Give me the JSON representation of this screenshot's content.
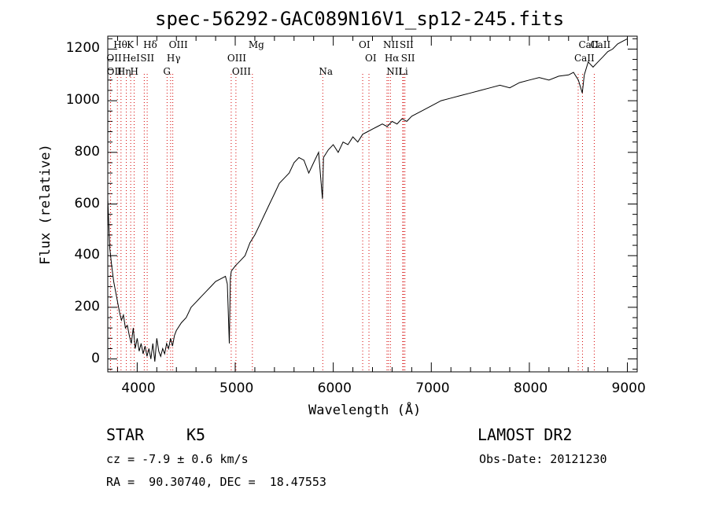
{
  "chart_data": {
    "type": "line",
    "title": "spec-56292-GAC089N16V1_sp12-245.fits",
    "xlabel": "Wavelength (Å)",
    "ylabel": "Flux (relative)",
    "xlim": [
      3700,
      9100
    ],
    "ylim": [
      -50,
      1250
    ],
    "x_ticks": [
      "4000",
      "5000",
      "6000",
      "7000",
      "8000",
      "9000"
    ],
    "y_ticks": [
      "0",
      "200",
      "400",
      "600",
      "800",
      "1000",
      "1200"
    ],
    "grid": false,
    "series": [
      {
        "x": [
          3700,
          3720,
          3740,
          3760,
          3780,
          3800,
          3820,
          3840,
          3860,
          3880,
          3900,
          3920,
          3940,
          3960,
          3980,
          4000,
          4020,
          4040,
          4060,
          4080,
          4100,
          4120,
          4140,
          4160,
          4180,
          4200,
          4220,
          4240,
          4260,
          4280,
          4300,
          4320,
          4340,
          4360,
          4380,
          4400,
          4450,
          4500,
          4550,
          4600,
          4650,
          4700,
          4750,
          4800,
          4850,
          4900,
          4920,
          4940,
          4950,
          4960,
          5000,
          5050,
          5100,
          5150,
          5200,
          5250,
          5300,
          5350,
          5400,
          5450,
          5500,
          5550,
          5600,
          5650,
          5700,
          5750,
          5800,
          5850,
          5890,
          5900,
          5950,
          6000,
          6050,
          6100,
          6150,
          6200,
          6250,
          6300,
          6350,
          6400,
          6450,
          6500,
          6550,
          6600,
          6650,
          6700,
          6750,
          6800,
          6900,
          7000,
          7100,
          7200,
          7300,
          7400,
          7500,
          7600,
          7700,
          7800,
          7900,
          8000,
          8100,
          8200,
          8300,
          8400,
          8450,
          8500,
          8540,
          8560,
          8600,
          8650,
          8700,
          8750,
          8800,
          8850,
          8900,
          8950,
          9000
        ],
        "values": [
          620,
          430,
          360,
          300,
          260,
          220,
          180,
          150,
          170,
          120,
          130,
          90,
          60,
          120,
          40,
          80,
          30,
          60,
          20,
          50,
          10,
          40,
          0,
          60,
          -10,
          80,
          30,
          10,
          40,
          20,
          60,
          40,
          80,
          50,
          90,
          110,
          140,
          160,
          200,
          220,
          240,
          260,
          280,
          300,
          310,
          320,
          290,
          60,
          310,
          340,
          360,
          380,
          400,
          450,
          480,
          520,
          560,
          600,
          640,
          680,
          700,
          720,
          760,
          780,
          770,
          720,
          760,
          800,
          620,
          780,
          810,
          830,
          800,
          840,
          830,
          860,
          840,
          870,
          880,
          890,
          900,
          910,
          900,
          920,
          910,
          930,
          920,
          940,
          960,
          980,
          1000,
          1010,
          1020,
          1030,
          1040,
          1050,
          1060,
          1050,
          1070,
          1080,
          1090,
          1080,
          1095,
          1100,
          1110,
          1080,
          1030,
          1100,
          1150,
          1130,
          1150,
          1170,
          1190,
          1200,
          1220,
          1230,
          1240
        ]
      }
    ],
    "line_markers": [
      {
        "name": "Hθ",
        "x": 3798,
        "row": 0
      },
      {
        "name": "K",
        "x": 3934,
        "row": 0
      },
      {
        "name": "Hδ",
        "x": 4102,
        "row": 0
      },
      {
        "name": "OIII",
        "x": 4363,
        "row": 0
      },
      {
        "name": "Mg",
        "x": 5175,
        "row": 0
      },
      {
        "name": "OI",
        "x": 6300,
        "row": 0
      },
      {
        "name": "NII",
        "x": 6548,
        "row": 0
      },
      {
        "name": "SII",
        "x": 6717,
        "row": 0
      },
      {
        "name": "CaII",
        "x": 8542,
        "row": 0
      },
      {
        "name": "OII",
        "x": 3727,
        "row": 1
      },
      {
        "name": "HeI",
        "x": 3889,
        "row": 1
      },
      {
        "name": "SII",
        "x": 4072,
        "row": 1
      },
      {
        "name": "Hγ",
        "x": 4341,
        "row": 1
      },
      {
        "name": "OIII",
        "x": 4959,
        "row": 1
      },
      {
        "name": "OI",
        "x": 6364,
        "row": 1
      },
      {
        "name": "Hα",
        "x": 6563,
        "row": 1
      },
      {
        "name": "SII",
        "x": 6731,
        "row": 1
      },
      {
        "name": "CaII",
        "x": 8498,
        "row": 1
      },
      {
        "name": "OII",
        "x": 3729,
        "row": 2
      },
      {
        "name": "Hη",
        "x": 3835,
        "row": 2
      },
      {
        "name": "H",
        "x": 3969,
        "row": 2
      },
      {
        "name": "G",
        "x": 4305,
        "row": 2
      },
      {
        "name": "OIII",
        "x": 5007,
        "row": 2
      },
      {
        "name": "Na",
        "x": 5893,
        "row": 2
      },
      {
        "name": "NII",
        "x": 6583,
        "row": 2
      },
      {
        "name": "Li",
        "x": 6708,
        "row": 2
      },
      {
        "name": "CaII",
        "x": 8662,
        "row": 0
      }
    ]
  },
  "info": {
    "class": "STAR",
    "subclass": "K5",
    "survey": "LAMOST DR2",
    "redshift": "cz = -7.9 ± 0.6 km/s",
    "obs_date": "Obs-Date: 20121230",
    "coords": "RA =  90.30740, DEC =  18.47553"
  },
  "colors": {
    "spectrum": "#000000",
    "line_marker": "#d40000",
    "axes": "#000000"
  }
}
